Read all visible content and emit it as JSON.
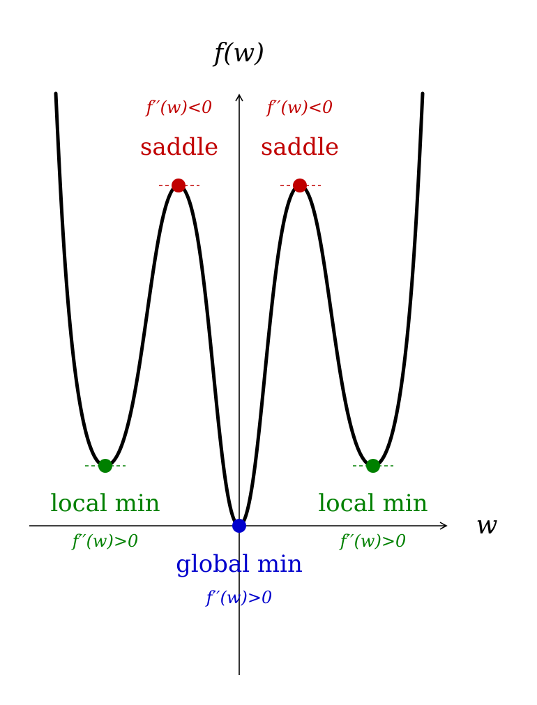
{
  "colors": {
    "curve": "#000000",
    "axis": "#000000",
    "saddle": "#c00000",
    "local_min": "#008000",
    "global_min": "#0000cc"
  },
  "axes": {
    "y_label": "f(w)",
    "x_label": "w"
  },
  "points": {
    "saddle_left": {
      "label": "saddle",
      "condition": "f′′(w)<0"
    },
    "saddle_right": {
      "label": "saddle",
      "condition": "f′′(w)<0"
    },
    "local_min_left": {
      "label": "local min",
      "condition": "f′′(w)>0"
    },
    "local_min_right": {
      "label": "local min",
      "condition": "f′′(w)>0"
    },
    "global_min": {
      "label": "global min",
      "condition": "f′′(w)>0"
    }
  }
}
